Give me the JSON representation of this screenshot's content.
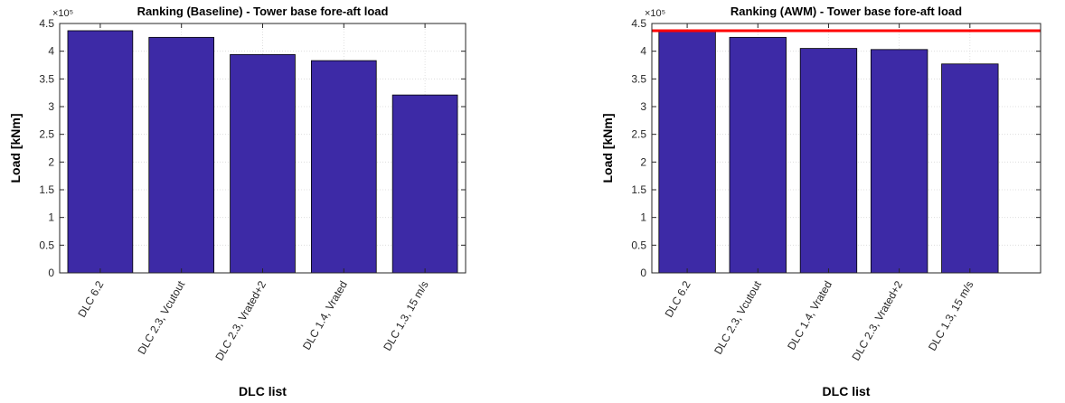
{
  "chart_data": [
    {
      "type": "bar",
      "title": "Ranking (Baseline) - Tower base fore-aft load",
      "xlabel": "DLC list",
      "ylabel": "Load [kNm]",
      "exponent_label": "×10⁵",
      "categories": [
        "DLC 6.2",
        "DLC 2.3, Vcutout",
        "DLC 2.3, Vrated+2",
        "DLC 1.4, Vrated",
        "DLC 1.3, 15 m/s"
      ],
      "values": [
        437000,
        425000,
        394000,
        383000,
        321000
      ],
      "ylim": [
        0,
        450000
      ],
      "yticks": [
        0,
        50000,
        100000,
        150000,
        200000,
        250000,
        300000,
        350000,
        400000,
        450000
      ],
      "ytick_labels": [
        "0",
        "0.5",
        "1",
        "1.5",
        "2",
        "2.5",
        "3",
        "3.5",
        "4",
        "4.5"
      ],
      "bar_color": "#3d2aa6",
      "grid": true
    },
    {
      "type": "bar",
      "title": "Ranking (AWM) - Tower base fore-aft load",
      "xlabel": "DLC list",
      "ylabel": "Load [kNm]",
      "exponent_label": "×10⁵",
      "categories": [
        "DLC 6.2",
        "DLC 2.3, Vcutout",
        "DLC 1.4, Vrated",
        "DLC 2.3, Vrated+2",
        "DLC 1.3, 15 m/s"
      ],
      "values": [
        437000,
        425000,
        405000,
        403000,
        377000
      ],
      "ylim": [
        0,
        450000
      ],
      "yticks": [
        0,
        50000,
        100000,
        150000,
        200000,
        250000,
        300000,
        350000,
        400000,
        450000
      ],
      "ytick_labels": [
        "0",
        "0.5",
        "1",
        "1.5",
        "2",
        "2.5",
        "3",
        "3.5",
        "4",
        "4.5"
      ],
      "bar_color": "#3d2aa6",
      "reference_line": 437000,
      "reference_line_color": "#ff0000",
      "grid": true
    }
  ]
}
